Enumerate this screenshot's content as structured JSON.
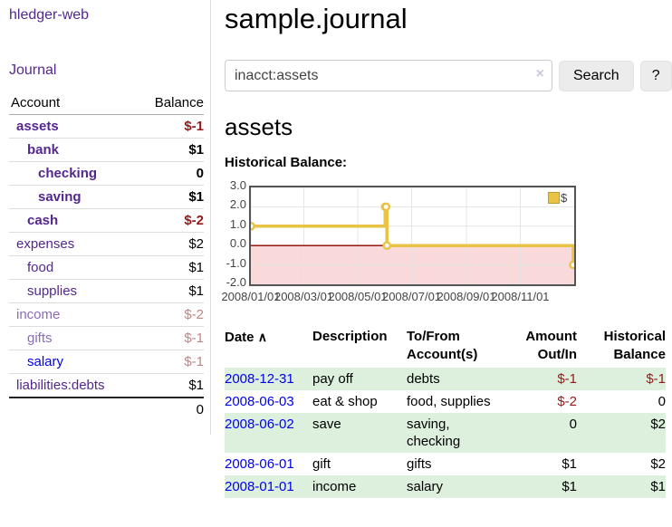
{
  "sidebar": {
    "brand": "hledger-web",
    "nav": {
      "journal": "Journal"
    },
    "accounts_table": {
      "headers": {
        "account": "Account",
        "balance": "Balance"
      },
      "rows": [
        {
          "name": "assets",
          "balance": "$-1"
        },
        {
          "name": "bank",
          "balance": "$1"
        },
        {
          "name": "checking",
          "balance": "0"
        },
        {
          "name": "saving",
          "balance": "$1"
        },
        {
          "name": "cash",
          "balance": "$-2"
        },
        {
          "name": "expenses",
          "balance": "$2"
        },
        {
          "name": "food",
          "balance": "$1"
        },
        {
          "name": "supplies",
          "balance": "$1"
        },
        {
          "name": "income",
          "balance": "$-2"
        },
        {
          "name": "gifts",
          "balance": "$-1"
        },
        {
          "name": "salary",
          "balance": "$-1"
        },
        {
          "name": "liabilities:debts",
          "balance": "$1"
        }
      ],
      "total": "0"
    }
  },
  "main": {
    "title": "sample.journal",
    "search": {
      "value": "inacct:assets",
      "clear_icon": "×",
      "search_button": "Search",
      "help_button": "?"
    },
    "account_heading": "assets",
    "chart_label": "Historical Balance:"
  },
  "chart_data": {
    "type": "line",
    "title": "Historical Balance:",
    "series": [
      {
        "name": "$",
        "color": "#e9c343",
        "step": true,
        "points": [
          [
            "2008-01-01",
            1
          ],
          [
            "2008-06-01",
            2
          ],
          [
            "2008-06-02",
            2
          ],
          [
            "2008-06-03",
            0
          ],
          [
            "2008-12-31",
            -1
          ]
        ]
      }
    ],
    "x_ticks": [
      {
        "label": "2008/01/01",
        "date": "2008-01-01"
      },
      {
        "label": "2008/03/01",
        "date": "2008-03-01"
      },
      {
        "label": "2008/05/01",
        "date": "2008-05-01"
      },
      {
        "label": "2008/07/01",
        "date": "2008-07-01"
      },
      {
        "label": "2008/09/01",
        "date": "2008-09-01"
      },
      {
        "label": "2008/11/01",
        "date": "2008-11-01"
      }
    ],
    "xlim": [
      "2008-01-01",
      "2009-01-01"
    ],
    "y_ticks": [
      "3.0",
      "2.0",
      "1.0",
      "0.0",
      "-1.0",
      "-2.0"
    ],
    "ylim": [
      -2,
      3
    ],
    "grid": true,
    "legend_position": "top-right",
    "negative_region_color": "#f9d9d9",
    "zero_line_color": "#8b0000",
    "grid_color": "#e5e5e5"
  },
  "register": {
    "headers": {
      "date": "Date",
      "sort_icon": "∧",
      "description": "Description",
      "tofrom": "To/From Account(s)",
      "amount": "Amount Out/In",
      "balance": "Historical Balance"
    },
    "rows": [
      {
        "date": "2008-12-31",
        "description": "pay off",
        "tofrom": "debts",
        "amount": "$-1",
        "balance": "$-1"
      },
      {
        "date": "2008-06-03",
        "description": "eat & shop",
        "tofrom": "food, supplies",
        "amount": "$-2",
        "balance": "0"
      },
      {
        "date": "2008-06-02",
        "description": "save",
        "tofrom": "saving, checking",
        "amount": "0",
        "balance": "$2"
      },
      {
        "date": "2008-06-01",
        "description": "gift",
        "tofrom": "gifts",
        "amount": "$1",
        "balance": "$2"
      },
      {
        "date": "2008-01-01",
        "description": "income",
        "tofrom": "salary",
        "amount": "$1",
        "balance": "$1"
      }
    ]
  },
  "colors": {
    "link_purple": "#54278f",
    "link_blue": "#0000ee",
    "negative_strong": "#941a1a",
    "negative_faded": "#c08585",
    "row_stripe_green": "#ddefdd",
    "chart_gold": "#e9c343"
  }
}
